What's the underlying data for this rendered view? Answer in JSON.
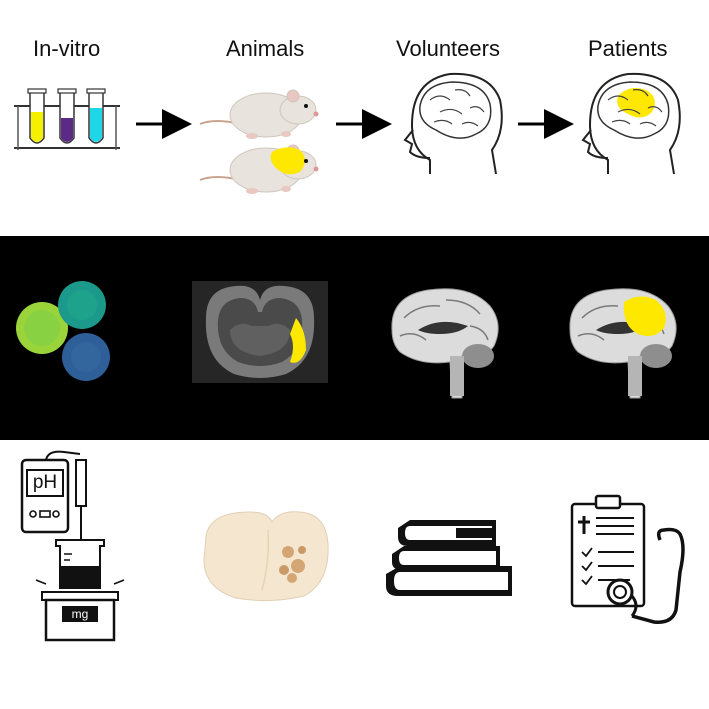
{
  "stages": [
    {
      "label": "In-vitro"
    },
    {
      "label": "Animals"
    },
    {
      "label": "Volunteers"
    },
    {
      "label": "Patients"
    }
  ],
  "meter_label": "pH",
  "scale_label": "mg",
  "colors": {
    "yellow": "#f4f000",
    "purple": "#5b2a86",
    "cyan": "#1fd6e6",
    "activation": "#ffe800",
    "band": "#000000"
  }
}
